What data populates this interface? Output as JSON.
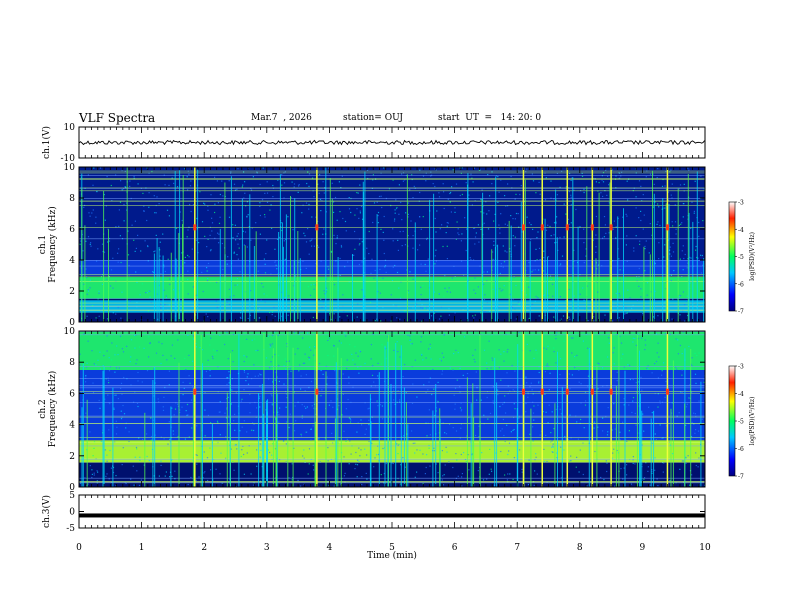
{
  "header": {
    "title": "VLF Spectra",
    "date": "Mar.7  , 2026",
    "station": "station= OUJ",
    "start_ut": "start  UT  =   14: 20: 0"
  },
  "chart_data": [
    {
      "type": "line",
      "ylabel": "ch.1(V)",
      "ylim": [
        -10,
        10
      ],
      "y_ticks": [
        "10",
        "-10"
      ],
      "trace_level": 0,
      "trace_color": "#000000"
    },
    {
      "type": "heatmap",
      "ylabel_line1": "ch.1",
      "ylabel_line2": "Frequency  (kHz)",
      "ylim": [
        0,
        10
      ],
      "y_ticks": [
        "0",
        "2",
        "4",
        "6",
        "8",
        "10"
      ],
      "colorbar": {
        "label": "log(PSD)(V²/Hz)",
        "range": [
          -7,
          -3
        ],
        "ticks": [
          "-3",
          "-4",
          "-5",
          "-6",
          "-7"
        ]
      },
      "bands": [
        {
          "from": 1.5,
          "to": 2.9,
          "level": "green"
        },
        {
          "from": 0.6,
          "to": 1.4,
          "level": "cyan"
        },
        {
          "from": 3.0,
          "to": 4.0,
          "level": "blue"
        },
        {
          "from": 4.0,
          "to": 10.0,
          "level": "dark-blue"
        }
      ],
      "bursts_min": [
        1.85,
        3.8,
        7.1,
        7.4,
        7.8,
        8.2,
        8.5,
        9.4
      ]
    },
    {
      "type": "heatmap",
      "ylabel_line1": "ch.2",
      "ylabel_line2": "Frequency  (kHz)",
      "ylim": [
        0,
        10
      ],
      "y_ticks": [
        "0",
        "2",
        "4",
        "6",
        "8",
        "10"
      ],
      "colorbar": {
        "label": "log(PSD)(V²/Hz)",
        "range": [
          -7,
          -3
        ],
        "ticks": [
          "-3",
          "-4",
          "-5",
          "-6",
          "-7"
        ]
      },
      "bands": [
        {
          "from": 1.6,
          "to": 3.0,
          "level": "yellow-green"
        },
        {
          "from": 7.5,
          "to": 10.0,
          "level": "green"
        },
        {
          "from": 3.0,
          "to": 7.5,
          "level": "blue"
        }
      ],
      "bursts_min": [
        1.85,
        3.8,
        7.1,
        7.4,
        7.8,
        8.2,
        8.5,
        9.4
      ]
    },
    {
      "type": "line",
      "ylabel": "ch.3(V)",
      "ylim": [
        -5,
        5
      ],
      "y_ticks": [
        "5",
        "0",
        "-5"
      ],
      "trace_level": -1.2,
      "trace_color": "#000000"
    }
  ],
  "x_axis": {
    "xlabel": "Time  (min)",
    "xlim": [
      0,
      10
    ],
    "ticks": [
      "0",
      "1",
      "2",
      "3",
      "4",
      "5",
      "6",
      "7",
      "8",
      "9",
      "10"
    ]
  }
}
